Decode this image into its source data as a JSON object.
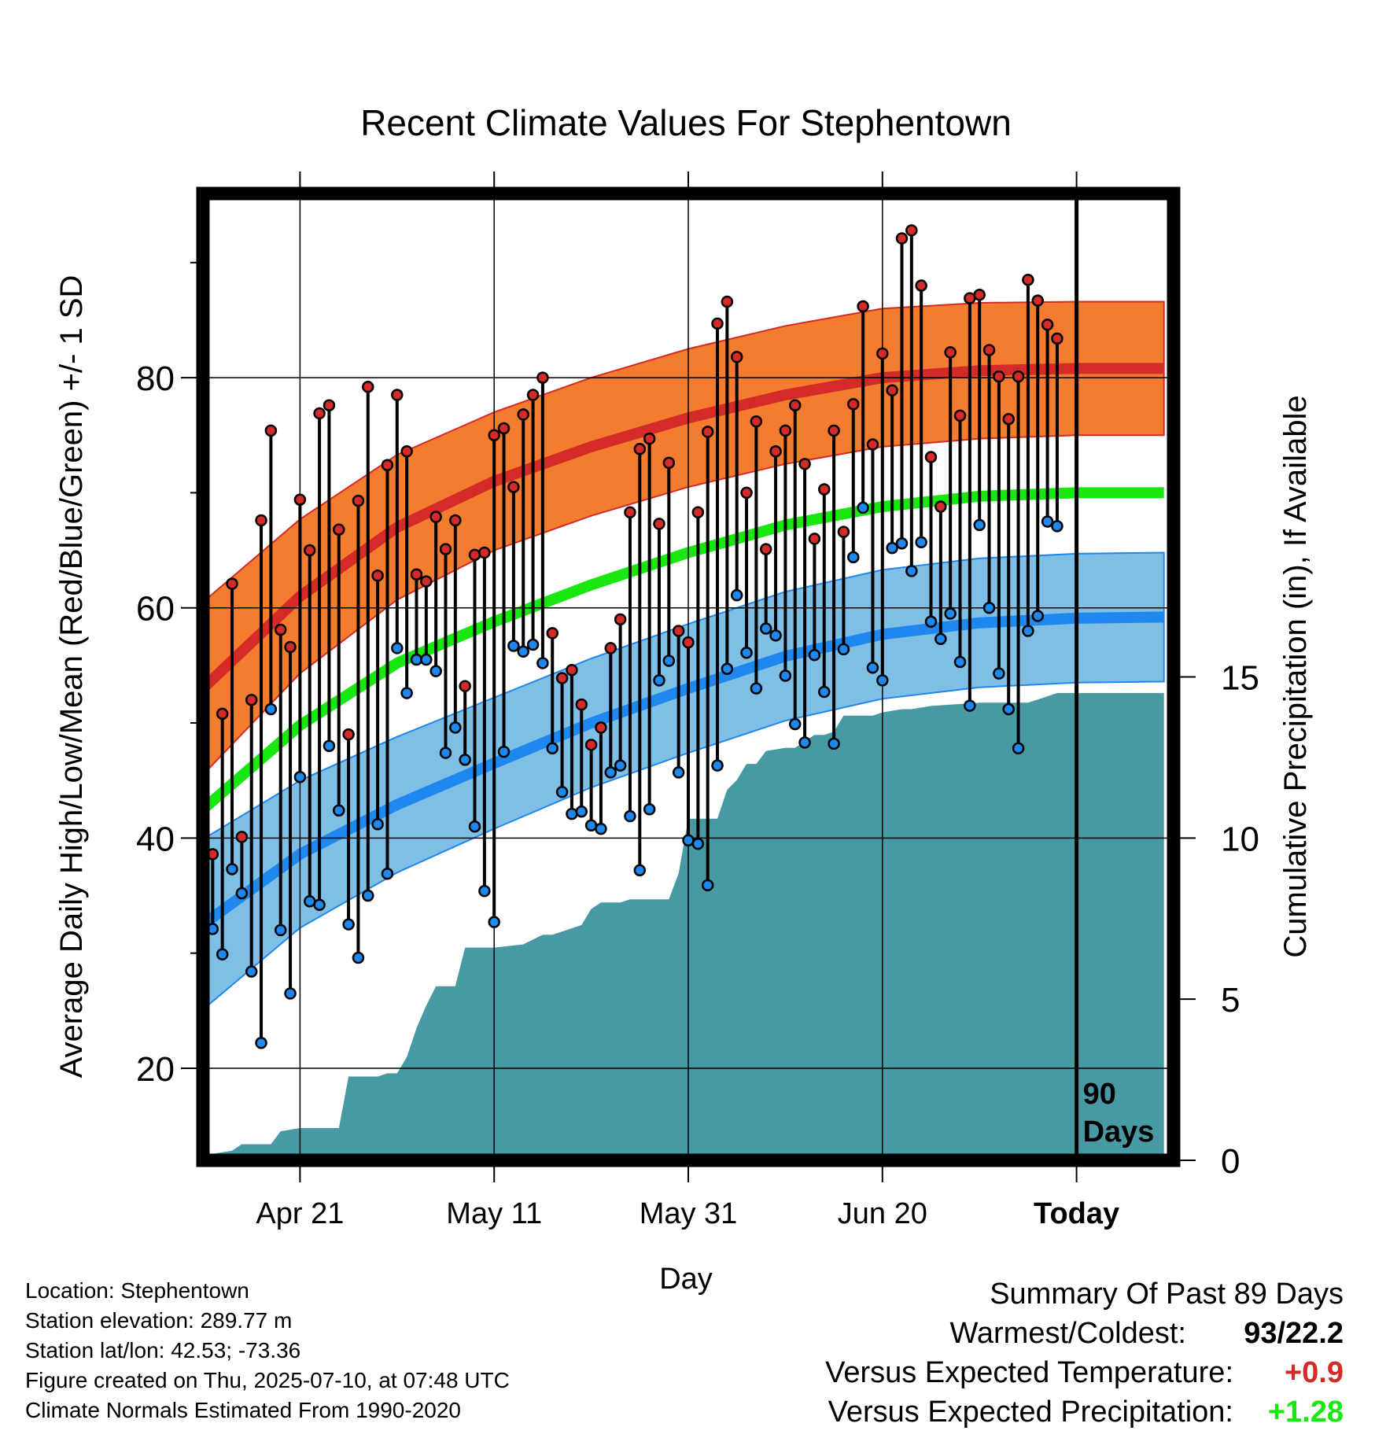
{
  "chart_data": {
    "type": "line",
    "title": "Recent Climate Values For Stephentown",
    "xlabel": "Day",
    "ylabel": "Average Daily High/Low/Mean (Red/Blue/Green) +/- 1 SD",
    "y2label": "Cumulative Precipitation (in), If Available",
    "x_ticklabels": [
      "Apr 21",
      "May 11",
      "May 31",
      "Jun 20",
      "Today"
    ],
    "x_tick_days": [
      10,
      30,
      50,
      70,
      90
    ],
    "xlim": [
      0,
      100
    ],
    "ylim": [
      12,
      96
    ],
    "y_ticks": [
      20,
      40,
      60,
      80
    ],
    "y2lim": [
      0,
      30
    ],
    "y2_ticks": [
      0,
      5,
      10,
      15
    ],
    "today_day": 90,
    "today_label_line1": "90",
    "today_label_line2": "Days",
    "colors": {
      "high_band": "#f47c2f",
      "high_normal": "#d42a28",
      "low_band": "#7fbfe6",
      "low_normal": "#1e88ef",
      "mean_normal": "#18e80f",
      "precip": "#4799a3",
      "high_point": "#d42a28",
      "low_point": "#1e88ef",
      "grid": "#000000"
    },
    "normals_x": [
      0,
      10,
      20,
      30,
      40,
      50,
      60,
      70,
      80,
      90,
      99
    ],
    "normal_high": [
      53,
      61,
      67,
      71,
      74,
      76.5,
      78.5,
      80,
      80.6,
      80.8,
      80.8
    ],
    "normal_high_sd": [
      7.5,
      6.7,
      6.3,
      6.0,
      6.0,
      6.0,
      6.0,
      6.0,
      5.9,
      5.8,
      5.8
    ],
    "normal_low": [
      32.5,
      38.6,
      42.9,
      46.5,
      50.0,
      53.0,
      55.8,
      57.7,
      58.7,
      59.1,
      59.2
    ],
    "normal_low_sd": [
      7.4,
      6.4,
      5.9,
      5.7,
      5.6,
      5.6,
      5.6,
      5.6,
      5.6,
      5.6,
      5.6
    ],
    "normal_mean": [
      42.5,
      49.8,
      55.2,
      58.8,
      62.0,
      64.8,
      67.2,
      68.8,
      69.7,
      70.0,
      70.0
    ],
    "daily_highs": [
      42.5,
      38.6,
      50.8,
      62.1,
      40.1,
      52.0,
      67.6,
      75.4,
      58.1,
      56.6,
      69.4,
      65.0,
      76.9,
      77.6,
      66.8,
      49.0,
      69.3,
      79.2,
      62.8,
      72.4,
      78.5,
      73.6,
      62.9,
      62.3,
      67.9,
      65.1,
      67.6,
      53.2,
      64.6,
      64.8,
      75.0,
      75.6,
      70.5,
      76.8,
      78.5,
      80.0,
      57.8,
      53.9,
      54.6,
      51.6,
      48.1,
      49.6,
      56.5,
      59.0,
      68.3,
      73.8,
      74.7,
      67.3,
      72.6,
      58.0,
      57.0,
      68.3,
      75.3,
      84.7,
      86.6,
      81.8,
      70.0,
      76.2,
      65.1,
      73.6,
      75.4,
      77.6,
      72.5,
      66.0,
      70.3,
      75.4,
      66.6,
      77.7,
      86.2,
      74.2,
      82.1,
      78.9,
      92.1,
      92.8,
      88.0,
      73.1,
      68.8,
      82.2,
      76.7,
      86.9,
      87.2,
      82.4,
      80.1,
      76.4,
      80.1,
      88.5,
      86.7,
      84.6,
      83.4
    ],
    "daily_lows": [
      32.3,
      32.1,
      29.9,
      37.3,
      35.2,
      28.4,
      22.2,
      51.2,
      32.0,
      26.5,
      45.3,
      34.5,
      34.2,
      48.0,
      42.4,
      32.5,
      29.6,
      35.0,
      41.2,
      36.9,
      56.5,
      52.6,
      55.5,
      55.5,
      54.5,
      47.4,
      49.6,
      46.8,
      41.0,
      35.4,
      32.7,
      47.5,
      56.7,
      56.2,
      56.8,
      55.2,
      47.8,
      44.0,
      42.1,
      42.3,
      41.1,
      40.8,
      45.7,
      46.3,
      41.9,
      37.2,
      42.5,
      53.7,
      55.4,
      45.7,
      39.8,
      39.5,
      35.9,
      46.3,
      54.7,
      61.1,
      56.1,
      53.0,
      58.2,
      57.6,
      54.1,
      49.9,
      48.3,
      55.9,
      52.7,
      48.2,
      56.4,
      64.4,
      68.7,
      54.8,
      53.7,
      65.2,
      65.6,
      63.2,
      65.7,
      58.8,
      57.3,
      59.5,
      55.3,
      51.5,
      67.2,
      60.0,
      54.3,
      51.2,
      47.8,
      58.0,
      59.3,
      67.5,
      67.1
    ],
    "cumulative_precip_x": [
      0,
      1,
      3,
      4,
      7,
      8,
      10,
      11,
      14,
      15,
      18,
      19,
      20,
      21,
      22,
      23,
      24,
      26,
      27,
      29,
      30,
      33,
      35,
      36,
      39,
      40,
      41,
      43,
      44,
      48,
      49,
      50,
      51,
      53,
      54,
      55,
      56,
      57,
      58,
      60,
      61,
      63,
      64,
      65,
      66,
      68,
      69,
      70,
      72,
      73,
      75,
      80,
      85,
      87,
      88,
      99
    ],
    "cumulative_precip": [
      0,
      0.2,
      0.3,
      0.5,
      0.5,
      0.9,
      1.0,
      1.0,
      1.0,
      2.6,
      2.6,
      2.7,
      2.7,
      3.2,
      4.1,
      4.8,
      5.4,
      5.4,
      6.6,
      6.6,
      6.6,
      6.7,
      7.0,
      7.0,
      7.3,
      7.8,
      8.0,
      8.0,
      8.1,
      8.1,
      8.9,
      10.6,
      10.6,
      10.6,
      11.5,
      11.8,
      12.3,
      12.3,
      12.7,
      12.8,
      12.8,
      13.2,
      13.2,
      13.3,
      13.8,
      13.8,
      13.8,
      13.9,
      14.0,
      14.0,
      14.1,
      14.2,
      14.2,
      14.4,
      14.5,
      14.5
    ]
  },
  "info": {
    "location": "Location: Stephentown",
    "elevation": "Station elevation: 289.77 m",
    "latlon": "Station lat/lon: 42.53; -73.36",
    "created": "Figure created on Thu, 2025-07-10, at 07:48 UTC",
    "normals": "Climate Normals Estimated From 1990-2020"
  },
  "summary": {
    "title": "Summary Of Past 89 Days",
    "warm_cold_label": "Warmest/Coldest:",
    "warm_cold_value": "93/22.2",
    "temp_label": "Versus Expected Temperature:",
    "temp_value": "+0.9",
    "temp_color": "#d42a28",
    "precip_label": "Versus Expected Precipitation:",
    "precip_value": "+1.28",
    "precip_color": "#18e80f"
  }
}
